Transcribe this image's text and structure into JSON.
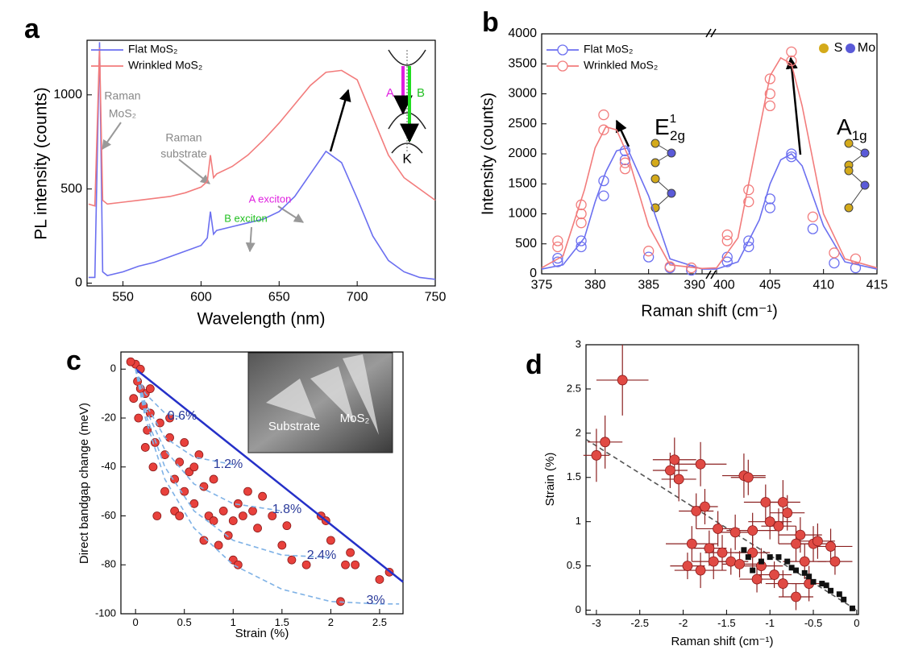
{
  "chart_data": [
    {
      "type": "line",
      "panel": "a",
      "xlabel": "Wavelength (nm)",
      "ylabel": "PL intensity (counts)",
      "xlim": [
        527,
        750
      ],
      "ylim": [
        -15,
        1290
      ],
      "xticks": [
        550,
        600,
        650,
        700,
        750
      ],
      "yticks": [
        0,
        500,
        1000
      ],
      "legend": "upper left",
      "x": [
        528,
        532,
        535,
        537,
        540,
        550,
        560,
        570,
        580,
        590,
        600,
        604,
        606,
        608,
        610,
        620,
        630,
        640,
        650,
        660,
        670,
        680,
        690,
        700,
        710,
        720,
        730,
        740,
        750
      ],
      "series": [
        {
          "name": "Flat MoS₂",
          "color": "#6b6ff0",
          "values": [
            30,
            30,
            1280,
            60,
            40,
            60,
            90,
            110,
            140,
            170,
            200,
            240,
            380,
            260,
            280,
            300,
            320,
            340,
            380,
            460,
            580,
            700,
            640,
            450,
            250,
            120,
            60,
            30,
            20
          ]
        },
        {
          "name": "Wrinkled MoS₂",
          "color": "#f27c7c",
          "values": [
            420,
            410,
            1250,
            440,
            420,
            430,
            440,
            450,
            460,
            480,
            510,
            540,
            680,
            560,
            580,
            620,
            680,
            760,
            850,
            950,
            1050,
            1120,
            1130,
            1080,
            880,
            680,
            560,
            500,
            440
          ]
        }
      ],
      "annotations": [
        "Raman",
        "MoS₂",
        "Raman",
        "substrate",
        "A exciton",
        "B exciton",
        "A",
        "B",
        "K"
      ]
    },
    {
      "type": "line",
      "panel": "b",
      "xlabel": "Raman shift (cm⁻¹)",
      "ylabel": "Intensity (counts)",
      "xlim": [
        375,
        415
      ],
      "xbreak": [
        390,
        400
      ],
      "ylim": [
        0,
        4000
      ],
      "xticks": [
        375,
        380,
        385,
        390,
        400,
        405,
        410,
        415
      ],
      "yticks": [
        0,
        500,
        1000,
        1500,
        2000,
        2500,
        3000,
        3500,
        4000
      ],
      "legend": "upper left",
      "x": [
        375,
        377,
        379,
        380,
        381,
        382,
        383,
        385,
        387,
        390,
        400,
        402,
        404,
        405,
        406,
        407,
        408,
        410,
        412,
        415
      ],
      "series": [
        {
          "name": "Flat MoS₂",
          "color": "#6b6ff0",
          "values": [
            80,
            150,
            600,
            1200,
            1700,
            2050,
            2100,
            1300,
            250,
            80,
            80,
            200,
            900,
            1500,
            1900,
            2000,
            1800,
            800,
            200,
            80
          ],
          "marker_x": [
            376.5,
            376.5,
            378.7,
            378.7,
            380.8,
            380.8,
            382.8,
            382.8,
            385,
            387,
            389,
            401,
            401,
            403,
            403,
            405,
            405,
            407,
            407,
            409,
            411,
            413
          ],
          "marker_values": [
            200,
            260,
            450,
            550,
            1300,
            1550,
            1900,
            2050,
            280,
            100,
            60,
            200,
            280,
            450,
            550,
            1100,
            1250,
            1950,
            2000,
            750,
            180,
            100
          ]
        },
        {
          "name": "Wrinkled MoS₂",
          "color": "#f27c7c",
          "values": [
            100,
            300,
            1400,
            2100,
            2450,
            2400,
            2000,
            800,
            150,
            90,
            100,
            600,
            2400,
            3300,
            3600,
            3500,
            2800,
            1000,
            250,
            100
          ],
          "marker_x": [
            376.5,
            376.5,
            378.7,
            378.7,
            378.7,
            380.8,
            380.8,
            382.8,
            382.8,
            385,
            387,
            389,
            401,
            401,
            403,
            403,
            405,
            405,
            405,
            407,
            407,
            409,
            411,
            413
          ],
          "marker_values": [
            450,
            550,
            850,
            1000,
            1150,
            2400,
            2650,
            1750,
            1850,
            380,
            120,
            100,
            550,
            650,
            1200,
            1400,
            2800,
            3000,
            3250,
            3550,
            3700,
            950,
            350,
            250
          ]
        }
      ],
      "annotations": [
        "S",
        "Mo"
      ],
      "mode_labels": [
        {
          "base": "E",
          "sup": "1",
          "sub": "2g"
        },
        {
          "base": "A",
          "sub": "1g"
        }
      ]
    },
    {
      "type": "scatter",
      "panel": "c",
      "xlabel": "Strain (%)",
      "ylabel": "Direct bandgap change (meV)",
      "xlim": [
        -0.15,
        2.74
      ],
      "ylim": [
        -100,
        7
      ],
      "xticks": [
        0,
        0.5,
        1,
        1.5,
        2,
        2.5
      ],
      "yticks": [
        0,
        -20,
        -40,
        -60,
        -80,
        -100
      ],
      "series": [
        {
          "kind": "scatter",
          "color": "#e8413c",
          "x": [
            0,
            0.02,
            0.05,
            -0.05,
            0.1,
            0.03,
            0.08,
            0.12,
            0.15,
            -0.02,
            0.2,
            0.25,
            0.3,
            0.18,
            0.35,
            0.4,
            0.45,
            0.5,
            0.55,
            0.6,
            0.3,
            0.22,
            0.4,
            0.7,
            0.75,
            0.8,
            0.65,
            0.5,
            0.9,
            1,
            1.05,
            0.95,
            0.85,
            1.1,
            1.2,
            1.25,
            1,
            1.05,
            0.8,
            1.3,
            1.4,
            1.5,
            1.55,
            1.6,
            1.75,
            1.9,
            1.95,
            2,
            2.1,
            2.15,
            2.2,
            2.25,
            2.5,
            2.6,
            0.1,
            0.15,
            0.6,
            0.45,
            0.7,
            1.15,
            0.05,
            0.35
          ],
          "values": [
            2,
            -5,
            0,
            3,
            -10,
            -20,
            -15,
            -25,
            -8,
            -12,
            -30,
            -22,
            -35,
            -40,
            -28,
            -45,
            -38,
            -50,
            -42,
            -55,
            -50,
            -60,
            -58,
            -48,
            -60,
            -45,
            -35,
            -30,
            -58,
            -62,
            -55,
            -68,
            -72,
            -60,
            -58,
            -65,
            -78,
            -80,
            -62,
            -52,
            -60,
            -72,
            -64,
            -78,
            -80,
            -60,
            -62,
            -70,
            -95,
            -80,
            -75,
            -80,
            -86,
            -83,
            -32,
            -18,
            -40,
            -60,
            -70,
            -50,
            -8,
            -20
          ]
        },
        {
          "kind": "line",
          "color": "#2530c8",
          "x": [
            0,
            2.74
          ],
          "values": [
            0,
            -87
          ]
        },
        {
          "kind": "line",
          "dash": true,
          "color": "#7fb2e6",
          "x": [
            0,
            0.1,
            0.3,
            0.5
          ],
          "values": [
            0,
            -10,
            -18,
            -20
          ]
        },
        {
          "kind": "line",
          "dash": true,
          "color": "#7fb2e6",
          "x": [
            0,
            0.1,
            0.3,
            0.6,
            1
          ],
          "values": [
            0,
            -14,
            -28,
            -36,
            -39
          ]
        },
        {
          "kind": "line",
          "dash": true,
          "color": "#7fb2e6",
          "x": [
            0,
            0.1,
            0.3,
            0.6,
            1,
            1.5
          ],
          "values": [
            0,
            -16,
            -33,
            -47,
            -55,
            -58
          ]
        },
        {
          "kind": "line",
          "dash": true,
          "color": "#7fb2e6",
          "x": [
            0,
            0.1,
            0.3,
            0.6,
            1,
            1.5,
            2
          ],
          "values": [
            0,
            -18,
            -40,
            -58,
            -70,
            -76,
            -77
          ]
        },
        {
          "kind": "line",
          "dash": true,
          "color": "#7fb2e6",
          "x": [
            0,
            0.1,
            0.3,
            0.6,
            1,
            1.5,
            2,
            2.5,
            2.7
          ],
          "values": [
            0,
            -20,
            -45,
            -65,
            -80,
            -90,
            -95,
            -96,
            -96
          ]
        }
      ],
      "annotations": [
        "0.6%",
        "1.2%",
        "1.8%",
        "2.4%",
        "3%",
        "MoS₂",
        "Substrate"
      ]
    },
    {
      "type": "scatter",
      "panel": "d",
      "xlabel": "Raman shift (cm⁻¹)",
      "ylabel": "Strain (%)",
      "xlim": [
        -3.12,
        0.02
      ],
      "ylim": [
        -0.05,
        3
      ],
      "xticks": [
        -3,
        -2.5,
        -2,
        -1.5,
        -1,
        -0.5,
        0
      ],
      "yticks": [
        0,
        0.5,
        1,
        1.5,
        2,
        2.5,
        3
      ],
      "series": [
        {
          "kind": "line",
          "dash": true,
          "color": "#555555",
          "x": [
            -3.12,
            0
          ],
          "values": [
            1.93,
            0
          ]
        },
        {
          "kind": "scatter",
          "color": "#e04a44",
          "error_color": "#8b2020",
          "x": [
            -2.7,
            -2.9,
            -3,
            -2.1,
            -2.15,
            -2.05,
            -1.8,
            -1.85,
            -1.75,
            -1.3,
            -1.25,
            -1.05,
            -0.85,
            -0.8,
            -1.6,
            -1.4,
            -1.2,
            -1,
            -0.9,
            -1.9,
            -1.7,
            -1.55,
            -1.65,
            -1.45,
            -1.35,
            -1.2,
            -1.1,
            -1.15,
            -0.95,
            -0.7,
            -0.6,
            -0.5,
            -0.45,
            -0.65,
            -0.3,
            -0.25,
            -0.55,
            -0.7,
            -1.8,
            -1.95,
            -0.85
          ],
          "values": [
            2.6,
            1.9,
            1.75,
            1.7,
            1.58,
            1.48,
            1.65,
            1.12,
            1.17,
            1.52,
            1.5,
            1.22,
            1.22,
            1.1,
            0.92,
            0.88,
            0.9,
            1,
            0.95,
            0.75,
            0.7,
            0.65,
            0.55,
            0.55,
            0.52,
            0.65,
            0.5,
            0.35,
            0.4,
            0.75,
            0.55,
            0.75,
            0.78,
            0.85,
            0.72,
            0.55,
            0.3,
            0.15,
            0.45,
            0.5,
            0.3
          ],
          "xerr": [
            0.3,
            0.2,
            0.15,
            0.25,
            0.2,
            0.2,
            0.3,
            0.2,
            0.15,
            0.25,
            0.2,
            0.25,
            0.2,
            0.2,
            0.25,
            0.2,
            0.3,
            0.25,
            0.2,
            0.3,
            0.2,
            0.2,
            0.25,
            0.2,
            0.2,
            0.2,
            0.25,
            0.2,
            0.2,
            0.2,
            0.25,
            0.2,
            0.2,
            0.25,
            0.25,
            0.2,
            0.2,
            0.2,
            0.3,
            0.2,
            0.2
          ],
          "yerr": [
            0.4,
            0.3,
            0.3,
            0.25,
            0.2,
            0.25,
            0.25,
            0.2,
            0.2,
            0.25,
            0.2,
            0.2,
            0.25,
            0.2,
            0.2,
            0.2,
            0.2,
            0.2,
            0.2,
            0.2,
            0.2,
            0.2,
            0.2,
            0.15,
            0.15,
            0.2,
            0.2,
            0.15,
            0.15,
            0.2,
            0.2,
            0.2,
            0.2,
            0.2,
            0.2,
            0.15,
            0.2,
            0.15,
            0.2,
            0.15,
            0.15
          ]
        },
        {
          "kind": "scatter",
          "marker": "square",
          "color": "#111111",
          "x": [
            -0.05,
            -0.15,
            -0.2,
            -0.3,
            -0.35,
            -0.4,
            -0.5,
            -0.55,
            -0.6,
            -0.7,
            -0.75,
            -0.8,
            -0.9,
            -1,
            -1.1,
            -1.2,
            -1.25,
            -1.3
          ],
          "values": [
            0.02,
            0.12,
            0.18,
            0.22,
            0.28,
            0.3,
            0.32,
            0.38,
            0.42,
            0.45,
            0.48,
            0.55,
            0.6,
            0.6,
            0.55,
            0.45,
            0.6,
            0.68
          ]
        }
      ]
    }
  ]
}
